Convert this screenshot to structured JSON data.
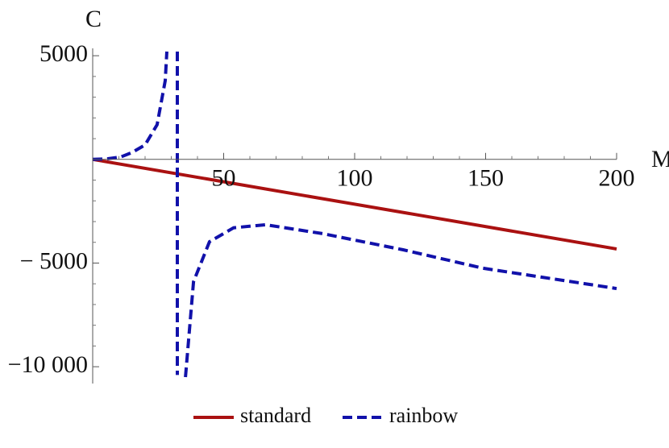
{
  "chart_data": {
    "type": "line",
    "xlabel": "M",
    "ylabel": "C",
    "xlim": [
      0,
      200
    ],
    "ylim": [
      -10500,
      5200
    ],
    "xticks": [
      50,
      100,
      150,
      200
    ],
    "xticks_minor": [
      10,
      20,
      30,
      40,
      60,
      70,
      80,
      90,
      110,
      120,
      130,
      140,
      160,
      170,
      180,
      190
    ],
    "yticks": [
      5000,
      {
        "value": -5000,
        "label": "− 5000"
      },
      {
        "value": -10000,
        "label": "−10 000"
      }
    ],
    "yticks_minor": [
      -10000,
      -9000,
      -8000,
      -7000,
      -6000,
      -4000,
      -3000,
      -2000,
      -1000,
      1000,
      2000,
      3000,
      4000
    ],
    "legend": "bottom",
    "series": [
      {
        "name": "standard",
        "color": "#aa1111",
        "dash": false,
        "x": [
          0,
          200
        ],
        "values": [
          0,
          -4320
        ]
      },
      {
        "name": "rainbow",
        "color": "#1111aa",
        "dash": true,
        "x": [
          0,
          5,
          10.8,
          15,
          20,
          24.6,
          27.7,
          28.3,
          30,
          32.3,
          32.3,
          34,
          35.4,
          38.5,
          44.6,
          53.8,
          66,
          87.7,
          118.5,
          149,
          200
        ],
        "values": [
          0,
          20,
          120,
          330,
          700,
          1670,
          3800,
          5200,
          null,
          5200,
          -10400,
          null,
          -10500,
          -5900,
          -3970,
          -3300,
          -3150,
          -3580,
          -4360,
          -5250,
          -6230
        ]
      }
    ]
  }
}
